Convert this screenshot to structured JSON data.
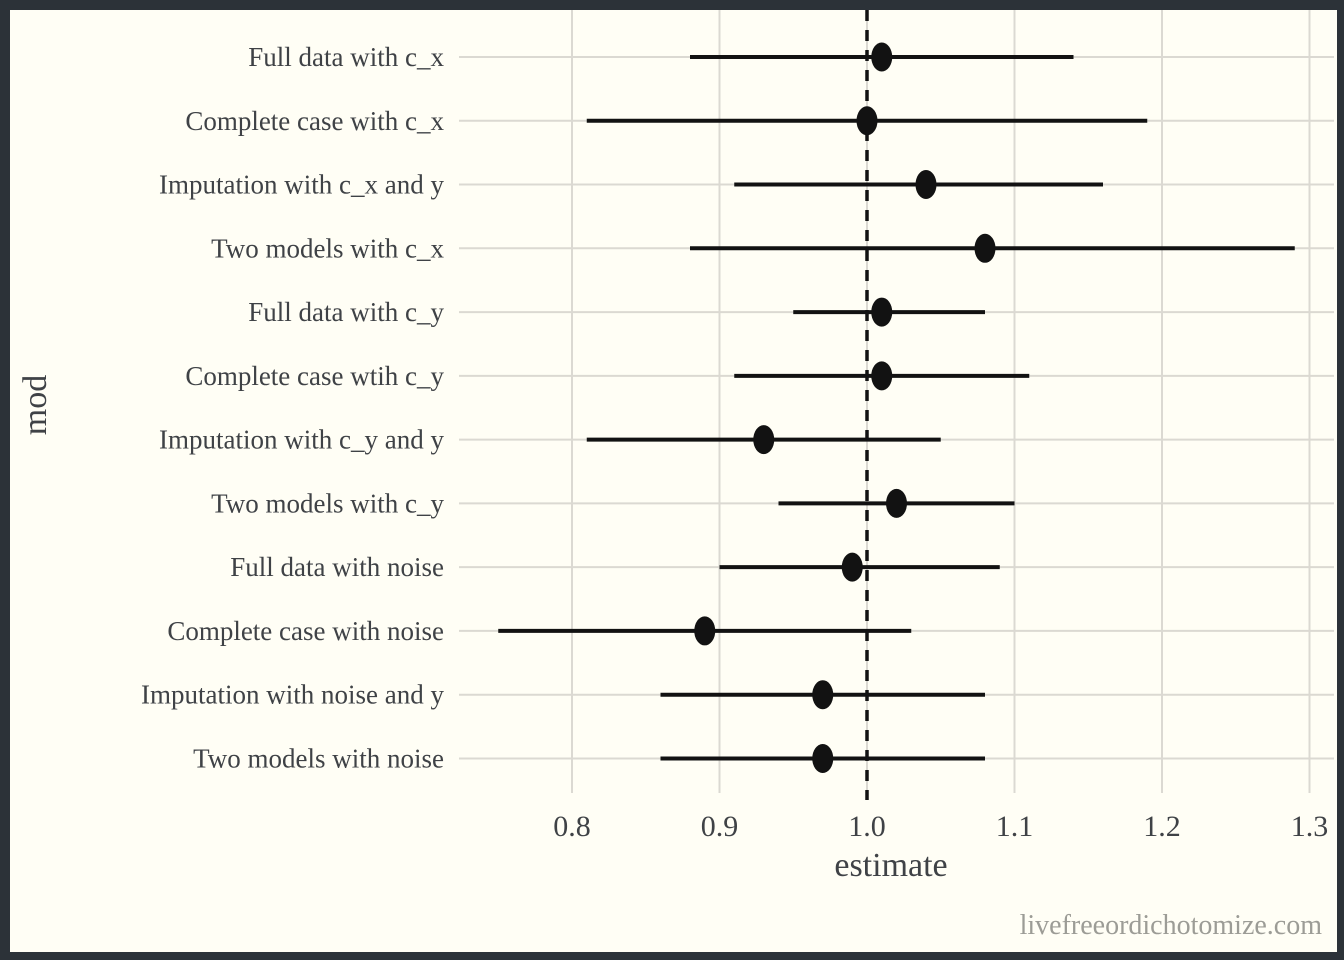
{
  "watermark": "livefreeordichotomize.com",
  "colors": {
    "frame": "#2c3238",
    "background": "#fffef5",
    "grid": "#dbd9d2",
    "data": "#121212",
    "text": "#3f4246",
    "watermark_text": "#9c9c96"
  },
  "chart_data": {
    "type": "scatter",
    "variant": "forest-pointrange",
    "title": "",
    "xlabel": "estimate",
    "ylabel": "mod",
    "x_ticks": [
      0.8,
      0.9,
      1.0,
      1.1,
      1.2,
      1.3
    ],
    "xlim": [
      0.72,
      1.32
    ],
    "grid": "major",
    "legend": "none",
    "reference_line": {
      "x": 1.0,
      "style": "dashed"
    },
    "categories": [
      "Full data with c_x",
      "Complete case with c_x",
      "Imputation with c_x and y",
      "Two models with c_x",
      "Full data with c_y",
      "Complete case wtih c_y",
      "Imputation with c_y and y",
      "Two models with c_y",
      "Full data with noise",
      "Complete case with noise",
      "Imputation with noise and y",
      "Two models with noise"
    ],
    "points": [
      {
        "label": "Full data with c_x",
        "estimate": 1.01,
        "conf_low": 0.88,
        "conf_high": 1.14
      },
      {
        "label": "Complete case with c_x",
        "estimate": 1.0,
        "conf_low": 0.81,
        "conf_high": 1.19
      },
      {
        "label": "Imputation with c_x and y",
        "estimate": 1.04,
        "conf_low": 0.91,
        "conf_high": 1.16
      },
      {
        "label": "Two models with c_x",
        "estimate": 1.08,
        "conf_low": 0.88,
        "conf_high": 1.29
      },
      {
        "label": "Full data with c_y",
        "estimate": 1.01,
        "conf_low": 0.95,
        "conf_high": 1.08
      },
      {
        "label": "Complete case wtih c_y",
        "estimate": 1.01,
        "conf_low": 0.91,
        "conf_high": 1.11
      },
      {
        "label": "Imputation with c_y and y",
        "estimate": 0.93,
        "conf_low": 0.81,
        "conf_high": 1.05
      },
      {
        "label": "Two models with c_y",
        "estimate": 1.02,
        "conf_low": 0.94,
        "conf_high": 1.1
      },
      {
        "label": "Full data with noise",
        "estimate": 0.99,
        "conf_low": 0.9,
        "conf_high": 1.09
      },
      {
        "label": "Complete case with noise",
        "estimate": 0.89,
        "conf_low": 0.75,
        "conf_high": 1.03
      },
      {
        "label": "Imputation with noise and y",
        "estimate": 0.97,
        "conf_low": 0.86,
        "conf_high": 1.08
      },
      {
        "label": "Two models with noise",
        "estimate": 0.97,
        "conf_low": 0.86,
        "conf_high": 1.08
      }
    ]
  }
}
